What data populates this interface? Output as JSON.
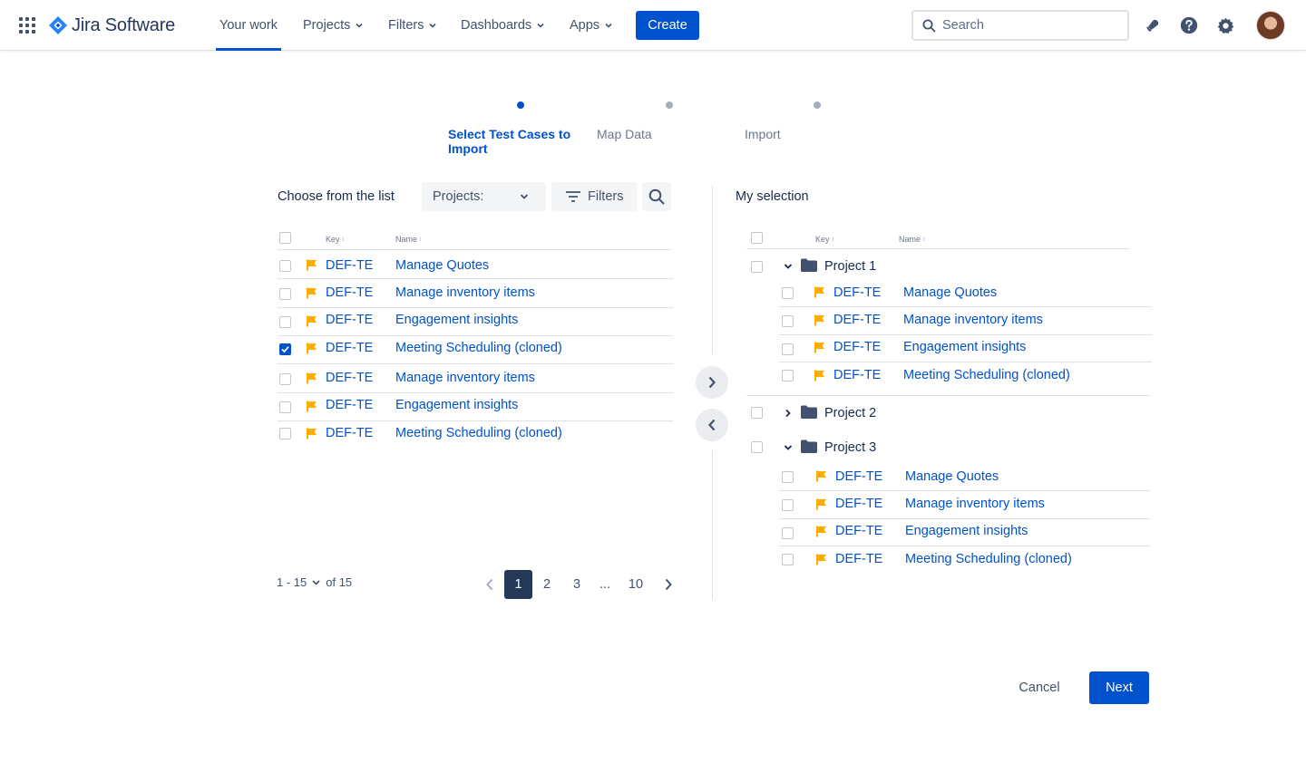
{
  "app": {
    "name": "Jira Software"
  },
  "nav": {
    "items": [
      {
        "label": "Your work",
        "active": true
      },
      {
        "label": "Projects",
        "dropdown": true
      },
      {
        "label": "Filters",
        "dropdown": true
      },
      {
        "label": "Dashboards",
        "dropdown": true
      },
      {
        "label": "Apps",
        "dropdown": true
      }
    ],
    "create_label": "Create",
    "search_placeholder": "Search"
  },
  "stepper": {
    "steps": [
      {
        "label": "Select Test Cases to Import",
        "state": "active"
      },
      {
        "label": "Map Data",
        "state": "idle"
      },
      {
        "label": "Import",
        "state": "idle"
      }
    ]
  },
  "left": {
    "title": "Choose from the list",
    "projects_select": "Projects:",
    "filters_label": "Filters",
    "columns": {
      "key": "Key",
      "name": "Name",
      "sort": "↕"
    },
    "rows": [
      {
        "key": "DEF-TE",
        "name": "Manage Quotes",
        "checked": false
      },
      {
        "key": "DEF-TE",
        "name": "Manage inventory items",
        "checked": false
      },
      {
        "key": "DEF-TE",
        "name": "Engagement insights",
        "checked": false
      },
      {
        "key": "DEF-TE",
        "name": "Meeting Scheduling (cloned)",
        "checked": true
      },
      {
        "key": "DEF-TE",
        "name": "Manage inventory items",
        "checked": false
      },
      {
        "key": "DEF-TE",
        "name": "Engagement insights",
        "checked": false
      },
      {
        "key": "DEF-TE",
        "name": "Meeting Scheduling (cloned)",
        "checked": false
      }
    ],
    "pagination": {
      "range": "1 - 15",
      "total": "of 15",
      "pages": [
        "1",
        "2",
        "3",
        "...",
        "10"
      ],
      "current": "1"
    }
  },
  "right": {
    "title": "My selection",
    "columns": {
      "key": "Key",
      "name": "Name",
      "sort": "↕"
    },
    "projects": [
      {
        "label": "Project 1",
        "expanded": true,
        "rows": [
          {
            "key": "DEF-TE",
            "name": "Manage Quotes"
          },
          {
            "key": "DEF-TE",
            "name": "Manage inventory items"
          },
          {
            "key": "DEF-TE",
            "name": "Engagement insights"
          },
          {
            "key": "DEF-TE",
            "name": "Meeting Scheduling (cloned)"
          }
        ]
      },
      {
        "label": "Project 2",
        "expanded": false,
        "rows": []
      },
      {
        "label": "Project 3",
        "expanded": true,
        "rows": [
          {
            "key": "DEF-TE",
            "name": "Manage Quotes"
          },
          {
            "key": "DEF-TE",
            "name": "Manage inventory items"
          },
          {
            "key": "DEF-TE",
            "name": "Engagement insights"
          },
          {
            "key": "DEF-TE",
            "name": "Meeting Scheduling (cloned)"
          }
        ]
      }
    ]
  },
  "footer": {
    "cancel_label": "Cancel",
    "next_label": "Next"
  },
  "colors": {
    "brand": "#0052CC",
    "flag": "#FFAB00",
    "folder": "#42526E",
    "current_page": "#253858"
  },
  "icons": [
    "app-switcher-icon",
    "jira-logo-icon",
    "chevron-down-icon",
    "search-icon",
    "notification-icon",
    "help-icon",
    "settings-icon",
    "filter-icon",
    "flag-icon",
    "folder-icon",
    "chevron-right-icon",
    "chevron-left-icon",
    "check-icon"
  ]
}
